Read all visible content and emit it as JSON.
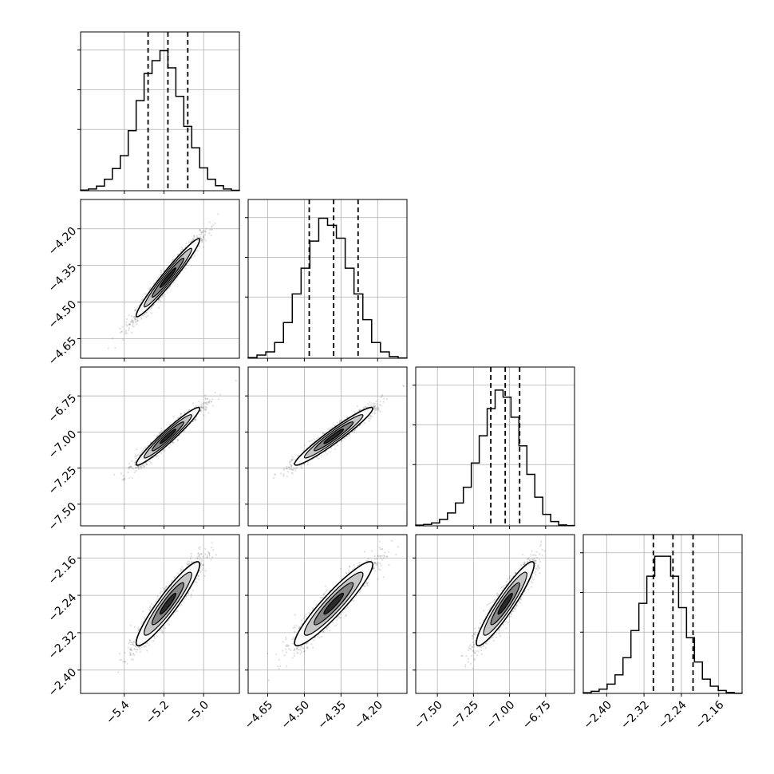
{
  "colors": {
    "line": "#000000",
    "grid": "#b0b0b0",
    "scatter": "#000000",
    "frame": "#000000",
    "background": "#ffffff"
  },
  "chart_data": {
    "type": "corner",
    "grid": true,
    "params": [
      {
        "index": 0,
        "range": [
          -5.62,
          -4.82
        ],
        "ticks": [
          -5.4,
          -5.2,
          -5.0
        ],
        "tick_labels": [
          "−5.4",
          "−5.2",
          "−5.0"
        ],
        "quantiles": [
          -5.28,
          -5.18,
          -5.08
        ],
        "hist_bin_count": 20,
        "hist": [
          0.4,
          1.2,
          3.2,
          8.0,
          15.5,
          24.5,
          42.0,
          63.0,
          82.0,
          91.0,
          98.0,
          86.0,
          66.0,
          45.0,
          30.0,
          16.0,
          8.0,
          3.5,
          1.2,
          0.3
        ]
      },
      {
        "index": 1,
        "range": [
          -4.73,
          -4.08
        ],
        "ticks": [
          -4.65,
          -4.5,
          -4.35,
          -4.2
        ],
        "tick_labels": [
          "−4.65",
          "−4.50",
          "−4.35",
          "−4.20"
        ],
        "quantiles": [
          -4.48,
          -4.38,
          -4.28
        ],
        "hist_bin_count": 18,
        "hist": [
          0.5,
          2.2,
          4.5,
          11.0,
          25.0,
          45.0,
          63.0,
          82.0,
          98.0,
          93.0,
          84.0,
          63.0,
          45.0,
          27.0,
          11.0,
          4.5,
          1.2,
          0.2
        ]
      },
      {
        "index": 2,
        "range": [
          -7.65,
          -6.55
        ],
        "ticks": [
          -7.5,
          -7.25,
          -7.0,
          -6.75
        ],
        "tick_labels": [
          "−7.50",
          "−7.25",
          "−7.00",
          "−6.75"
        ],
        "quantiles": [
          -7.13,
          -7.03,
          -6.93
        ],
        "hist_bin_count": 20,
        "hist": [
          0.5,
          1.0,
          2.0,
          4.5,
          9.0,
          16.0,
          27.0,
          44.0,
          63.0,
          82.0,
          95.0,
          90.0,
          76.0,
          56.0,
          36.0,
          20.0,
          8.0,
          3.0,
          0.6,
          0.2
        ]
      },
      {
        "index": 3,
        "range": [
          -2.45,
          -2.11
        ],
        "ticks": [
          -2.4,
          -2.32,
          -2.24,
          -2.16
        ],
        "tick_labels": [
          "−2.40",
          "−2.32",
          "−2.24",
          "−2.16"
        ],
        "quantiles": [
          -2.3,
          -2.258,
          -2.215
        ],
        "hist_bin_count": 20,
        "hist": [
          0.5,
          1.5,
          3.0,
          6.5,
          13.0,
          25.0,
          44.0,
          63.0,
          82.0,
          96.0,
          96.0,
          82.0,
          60.0,
          39.0,
          22.0,
          10.0,
          5.0,
          2.0,
          0.6,
          0.1
        ]
      }
    ],
    "pairs": [
      {
        "row": 1,
        "col": 0,
        "center": [
          -5.18,
          -4.4
        ],
        "spread": [
          0.08,
          0.08
        ],
        "correlation": 0.97
      },
      {
        "row": 2,
        "col": 0,
        "center": [
          -5.18,
          -7.03
        ],
        "spread": [
          0.08,
          0.1
        ],
        "correlation": 0.96
      },
      {
        "row": 2,
        "col": 1,
        "center": [
          -4.38,
          -7.03
        ],
        "spread": [
          0.08,
          0.1
        ],
        "correlation": 0.96
      },
      {
        "row": 3,
        "col": 0,
        "center": [
          -5.18,
          -2.258
        ],
        "spread": [
          0.08,
          0.045
        ],
        "correlation": 0.93
      },
      {
        "row": 3,
        "col": 1,
        "center": [
          -4.38,
          -2.258
        ],
        "spread": [
          0.08,
          0.045
        ],
        "correlation": 0.93
      },
      {
        "row": 3,
        "col": 2,
        "center": [
          -7.03,
          -2.258
        ],
        "spread": [
          0.1,
          0.045
        ],
        "correlation": 0.93
      }
    ]
  }
}
